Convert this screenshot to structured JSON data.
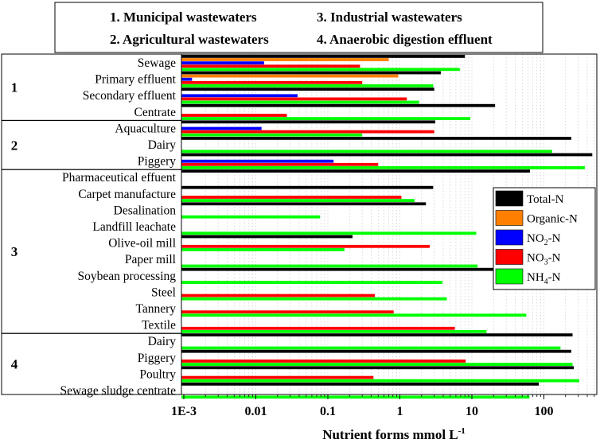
{
  "header": {
    "groups": [
      "1. Municipal wastewaters",
      "2. Agricultural wastewaters",
      "3. Industrial wastewaters",
      "4. Anaerobic digestion effluent"
    ]
  },
  "colors": {
    "Total-N": "#000000",
    "Organic-N": "#ff8000",
    "NO2-N": "#0000ff",
    "NO3-N": "#ff0000",
    "NH4-N": "#00ff00"
  },
  "chart_data": {
    "type": "bar",
    "orientation": "horizontal",
    "x_scale": "log",
    "xlim": [
      0.001,
      500
    ],
    "xlabel": "Nutrient forms mmol L",
    "xlabel_superscript": "-1",
    "xticks": [
      {
        "value": 0.001,
        "label": "1E-3"
      },
      {
        "value": 0.01,
        "label": "0.01"
      },
      {
        "value": 0.1,
        "label": "0.1"
      },
      {
        "value": 1,
        "label": "1"
      },
      {
        "value": 10,
        "label": "10"
      },
      {
        "value": 100,
        "label": "100"
      }
    ],
    "grid": true,
    "legend_position": "right",
    "legend": [
      {
        "key": "Total-N",
        "base": "Total-N",
        "sub": ""
      },
      {
        "key": "Organic-N",
        "base": "Organic-N",
        "sub": ""
      },
      {
        "key": "NO2-N",
        "base": "NO",
        "sub": "2",
        "tail": "-N"
      },
      {
        "key": "NO3-N",
        "base": "NO",
        "sub": "3",
        "tail": "-N"
      },
      {
        "key": "NH4-N",
        "base": "NH",
        "sub": "4",
        "tail": "-N"
      }
    ],
    "groups": [
      {
        "label": "1",
        "categories": [
          {
            "name": "Sewage",
            "values": {
              "Total-N": 8,
              "Organic-N": 0.7,
              "NO2-N": 0.013,
              "NO3-N": 0.28,
              "NH4-N": 6.8
            }
          },
          {
            "name": "Primary effluent",
            "values": {
              "Total-N": 3.7,
              "Organic-N": 0.95,
              "NO2-N": 0.0013,
              "NO3-N": 0.3,
              "NH4-N": 2.9
            }
          },
          {
            "name": "Secondary effluent",
            "values": {
              "Total-N": 3.0,
              "NO2-N": 0.038,
              "NO3-N": 1.25,
              "NH4-N": 1.85
            }
          },
          {
            "name": "Centrate",
            "values": {
              "Total-N": 21,
              "NO3-N": 0.027,
              "NH4-N": 9.5
            }
          }
        ]
      },
      {
        "label": "2",
        "categories": [
          {
            "name": "Aquaculture",
            "values": {
              "Total-N": 3.1,
              "NO2-N": 0.012,
              "NO3-N": 3.0,
              "NH4-N": 0.3
            }
          },
          {
            "name": "Dairy",
            "values": {
              "Total-N": 240,
              "NH4-N": 130
            }
          },
          {
            "name": "Piggery",
            "values": {
              "Total-N": 470,
              "NO2-N": 0.12,
              "NO3-N": 0.5,
              "NH4-N": 370
            }
          }
        ]
      },
      {
        "label": "3",
        "categories": [
          {
            "name": "Pharmaceutical effuent",
            "values": {
              "Total-N": 64
            }
          },
          {
            "name": "Carpet manufacture",
            "values": {
              "Total-N": 2.9,
              "NO3-N": 1.05,
              "NH4-N": 1.6
            }
          },
          {
            "name": "Desalination",
            "values": {
              "Total-N": 2.3,
              "NH4-N": 0.078
            }
          },
          {
            "name": "Landfill leachate",
            "values": {
              "NH4-N": 11.5
            }
          },
          {
            "name": "Olive-oil mill",
            "values": {
              "Total-N": 0.22,
              "NO3-N": 2.6,
              "NH4-N": 0.17
            }
          },
          {
            "name": "Paper mill",
            "values": {
              "NH4-N": 12
            }
          },
          {
            "name": "Soybean processing",
            "values": {
              "Total-N": 20,
              "NH4-N": 3.9
            }
          },
          {
            "name": "Steel",
            "values": {
              "NO3-N": 0.45,
              "NH4-N": 4.5
            }
          },
          {
            "name": "Tannery",
            "values": {
              "NO3-N": 0.82,
              "NH4-N": 57
            }
          },
          {
            "name": "Textile",
            "values": {
              "NO3-N": 5.8,
              "NH4-N": 16
            }
          }
        ]
      },
      {
        "label": "4",
        "categories": [
          {
            "name": "Dairy",
            "values": {
              "Total-N": 250,
              "NH4-N": 170
            }
          },
          {
            "name": "Piggery",
            "values": {
              "Total-N": 240,
              "NO3-N": 8.2,
              "NH4-N": 250
            }
          },
          {
            "name": "Poultry",
            "values": {
              "Total-N": 260,
              "NO3-N": 0.43,
              "NH4-N": 310
            }
          },
          {
            "name": "Sewage sludge centrate",
            "values": {
              "Total-N": 85,
              "NH4-N": 63
            }
          }
        ]
      }
    ]
  }
}
